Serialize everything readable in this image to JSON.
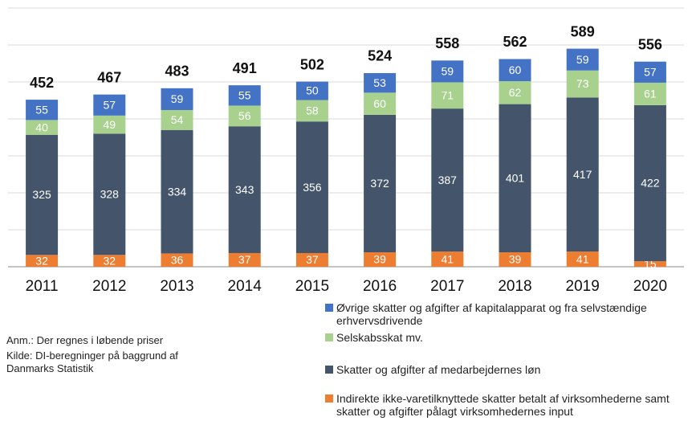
{
  "chart_data": {
    "type": "stacked_bar",
    "categories": [
      "2011",
      "2012",
      "2013",
      "2014",
      "2015",
      "2016",
      "2017",
      "2018",
      "2019",
      "2020"
    ],
    "series": [
      {
        "name": "Indirekte ikke-varetilknyttede skatter betalt af virksomhederne samt skatter og afgifter pålagt virksomhedernes input",
        "color": "#ed7d31",
        "values": [
          32,
          32,
          36,
          37,
          37,
          39,
          41,
          39,
          41,
          15
        ]
      },
      {
        "name": "Skatter og afgifter af medarbejdernes løn",
        "color": "#44546a",
        "values": [
          325,
          328,
          334,
          343,
          356,
          372,
          387,
          401,
          417,
          422
        ]
      },
      {
        "name": "Selskabsskat mv.",
        "color": "#a9d18e",
        "values": [
          40,
          49,
          54,
          56,
          58,
          60,
          71,
          62,
          73,
          61
        ]
      },
      {
        "name": "Øvrige skatter og afgifter af kapitalapparat og fra selvstændige erhvervsdrivende",
        "color": "#4472c4",
        "values": [
          55,
          57,
          59,
          55,
          50,
          53,
          59,
          60,
          59,
          57
        ]
      }
    ],
    "totals": [
      452,
      467,
      483,
      491,
      502,
      524,
      558,
      562,
      589,
      556
    ],
    "ylim": [
      0,
      700
    ],
    "yticks": [
      0,
      100,
      200,
      300,
      400,
      500,
      600,
      700
    ],
    "grid": true,
    "notes": [
      "Anm.: Der regnes i løbende priser",
      "Kilde: DI-beregninger på baggrund af Danmarks Statistik"
    ]
  }
}
